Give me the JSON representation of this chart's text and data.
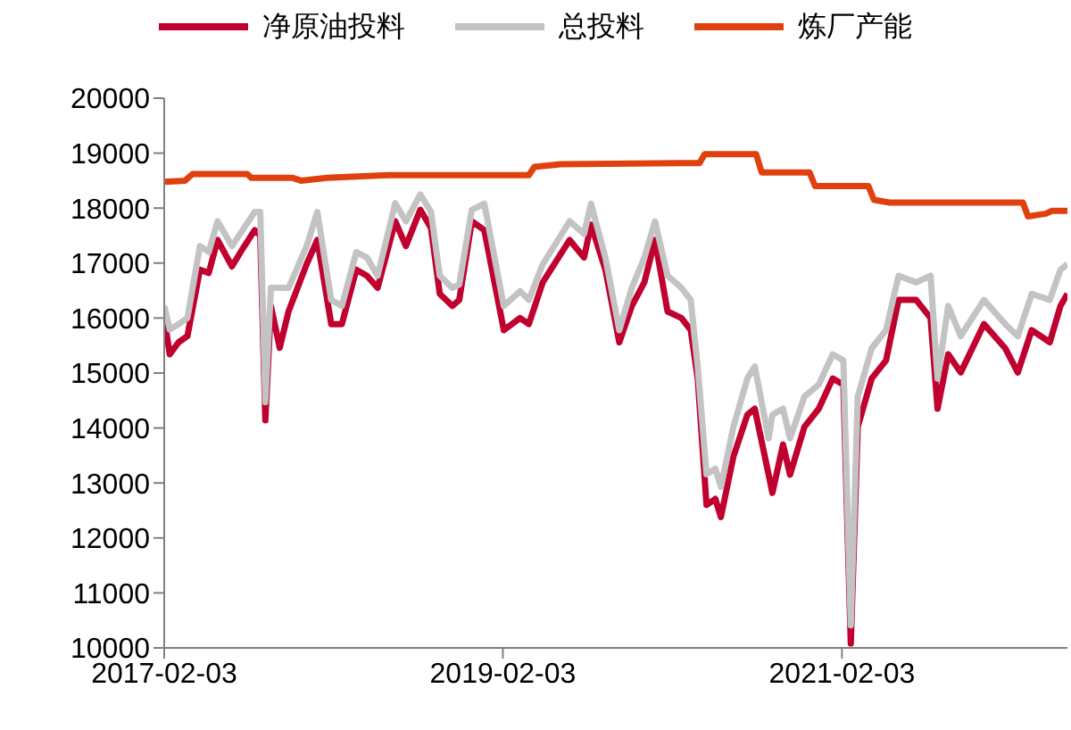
{
  "chart_data": {
    "type": "line",
    "legend": "top",
    "marker": "none",
    "line_style": "solid",
    "grid": false,
    "x": [
      "2017-02-03",
      "2017-02-15",
      "2017-03-06",
      "2017-03-25",
      "2017-04-21",
      "2017-05-10",
      "2017-05-29",
      "2017-06-29",
      "2017-07-22",
      "2017-08-17",
      "2017-08-29",
      "2017-09-09",
      "2017-09-21",
      "2017-10-10",
      "2017-10-29",
      "2017-12-07",
      "2017-12-30",
      "2018-01-29",
      "2018-02-21",
      "2018-03-24",
      "2018-04-16",
      "2018-05-09",
      "2018-06-16",
      "2018-07-09",
      "2018-08-09",
      "2018-09-01",
      "2018-09-20",
      "2018-10-17",
      "2018-11-01",
      "2018-11-28",
      "2018-12-25",
      "2019-02-05",
      "2019-03-12",
      "2019-03-31",
      "2019-04-30",
      "2019-06-27",
      "2019-07-28",
      "2019-08-12",
      "2019-09-12",
      "2019-10-12",
      "2019-11-08",
      "2019-12-05",
      "2019-12-28",
      "2020-01-24",
      "2020-02-23",
      "2020-03-14",
      "2020-03-29",
      "2020-04-17",
      "2020-05-06",
      "2020-05-18",
      "2020-06-14",
      "2020-07-14",
      "2020-07-30",
      "2020-08-29",
      "2020-09-06",
      "2020-09-29",
      "2020-10-14",
      "2020-11-14",
      "2020-12-15",
      "2021-01-14",
      "2021-02-06",
      "2021-02-22",
      "2021-03-09",
      "2021-04-08",
      "2021-05-09",
      "2021-06-05",
      "2021-07-13",
      "2021-08-13",
      "2021-08-28",
      "2021-09-20",
      "2021-10-17",
      "2021-12-06",
      "2022-01-21",
      "2022-02-17",
      "2022-03-19",
      "2022-04-27",
      "2022-05-20",
      "2022-06-04"
    ],
    "series": [
      {
        "name": "净原油投料",
        "color": "#c0002f",
        "values": [
          16000,
          15340,
          15560,
          15670,
          16880,
          16820,
          17420,
          16940,
          17260,
          17600,
          17500,
          14140,
          16220,
          15460,
          16120,
          16980,
          17420,
          15890,
          15890,
          16880,
          16770,
          16550,
          17760,
          17310,
          17970,
          17640,
          16440,
          16220,
          16330,
          17760,
          17600,
          15780,
          16000,
          15890,
          16650,
          17420,
          17100,
          17700,
          16880,
          15560,
          16220,
          16650,
          17420,
          16120,
          16000,
          15780,
          14900,
          12600,
          12710,
          12380,
          13480,
          14240,
          14350,
          13150,
          12820,
          13700,
          13150,
          14020,
          14350,
          14900,
          14790,
          10080,
          14020,
          14900,
          15230,
          16330,
          16330,
          16000,
          14350,
          15340,
          15010,
          15890,
          15450,
          15010,
          15780,
          15560,
          16220,
          16440
        ]
      },
      {
        "name": "总投料",
        "color": "#c3c3c3",
        "values": [
          16220,
          15790,
          15890,
          16000,
          17310,
          17200,
          17760,
          17310,
          17600,
          17930,
          17930,
          14470,
          16550,
          16550,
          16550,
          17310,
          17930,
          16330,
          16220,
          17200,
          17100,
          16770,
          18090,
          17760,
          18250,
          17930,
          16770,
          16550,
          16610,
          17970,
          18080,
          16220,
          16490,
          16330,
          16980,
          17760,
          17530,
          18080,
          17100,
          15780,
          16550,
          17100,
          17760,
          16770,
          16550,
          16330,
          15120,
          13160,
          13260,
          12930,
          14020,
          14900,
          15120,
          13810,
          14240,
          14350,
          13810,
          14570,
          14790,
          15340,
          15230,
          10410,
          14570,
          15450,
          15780,
          16770,
          16650,
          16770,
          14900,
          16220,
          15670,
          16330,
          15890,
          15670,
          16440,
          16330,
          16880,
          16980
        ]
      },
      {
        "name": "炼厂产能",
        "color": "#e0400e",
        "x": [
          "2017-02-03",
          "2017-03-20",
          "2017-04-05",
          "2017-08-01",
          "2017-08-10",
          "2017-11-07",
          "2017-11-25",
          "2018-01-20",
          "2018-06-01",
          "2019-03-31",
          "2019-04-12",
          "2019-06-08",
          "2020-04-02",
          "2020-04-13",
          "2020-08-02",
          "2020-08-14",
          "2020-11-25",
          "2020-12-07",
          "2021-04-01",
          "2021-04-13",
          "2021-05-17",
          "2022-02-28",
          "2022-03-11",
          "2022-04-19",
          "2022-05-01",
          "2022-06-04"
        ],
        "values": [
          18480,
          18500,
          18620,
          18620,
          18550,
          18550,
          18500,
          18550,
          18600,
          18600,
          18750,
          18800,
          18820,
          18980,
          18980,
          18650,
          18650,
          18400,
          18400,
          18150,
          18100,
          18100,
          17850,
          17900,
          17950,
          17950
        ]
      }
    ],
    "xlim": [
      "2017-02-03",
      "2022-06-04"
    ],
    "xticks": [
      "2017-02-03",
      "2019-02-03",
      "2021-02-03"
    ],
    "ylim": [
      10000,
      20000
    ],
    "yticks": [
      10000,
      11000,
      12000,
      13000,
      14000,
      15000,
      16000,
      17000,
      18000,
      19000,
      20000
    ]
  }
}
